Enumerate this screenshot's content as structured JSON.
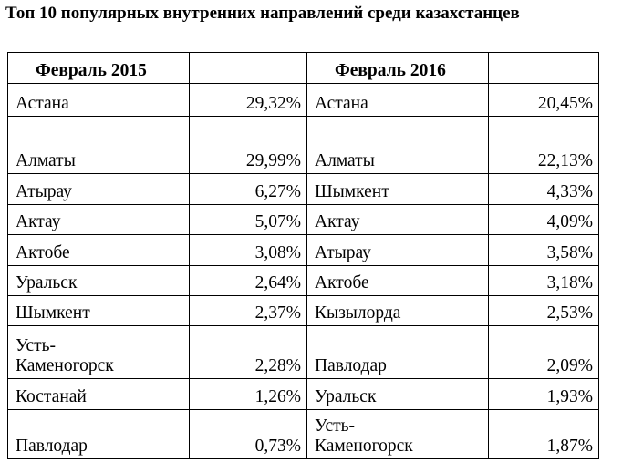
{
  "header": {
    "title": "Топ 10 популярных внутренних направлений среди казахстанцев"
  },
  "table": {
    "columns": [
      "Февраль 2015",
      "Февраль 2016"
    ],
    "rows": [
      [
        "Астана",
        "29,32%",
        "Астана",
        "20,45%"
      ],
      [
        "Алматы",
        "29,99%",
        "Алматы",
        "22,13%"
      ],
      [
        "Атырау",
        "6,27%",
        "Шымкент",
        "4,33%"
      ],
      [
        "Актау",
        "5,07%",
        "Актау",
        "4,09%"
      ],
      [
        "Актобе",
        "3,08%",
        "Атырау",
        "3,58%"
      ],
      [
        "Уральск",
        "2,64%",
        "Актобе",
        "3,18%"
      ],
      [
        "Шымкент",
        "2,37%",
        "Кызылорда",
        "2,53%"
      ],
      [
        "Усть-Каменогорск",
        "2,28%",
        "Павлодар",
        "2,09%"
      ],
      [
        "Костанай",
        "1,26%",
        "Уральск",
        "1,93%"
      ],
      [
        "Павлодар",
        "0,73%",
        "Усть-Каменогорск",
        "1,87%"
      ]
    ]
  }
}
